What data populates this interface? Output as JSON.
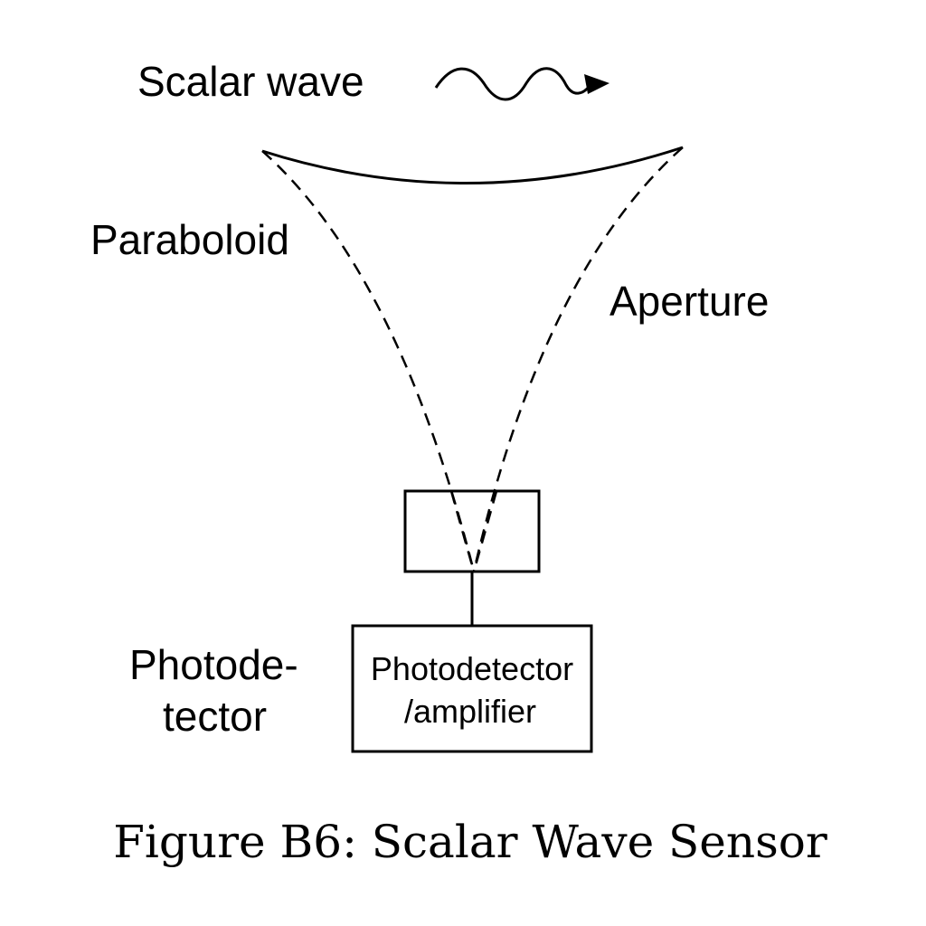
{
  "labels": {
    "scalar_wave": "Scalar wave",
    "paraboloid": "Paraboloid",
    "aperture": "Aperture",
    "photodetector_side": [
      "Photode-",
      "tector"
    ]
  },
  "amplifier_box": {
    "lines": [
      "Photodetector",
      "/amplifier"
    ]
  },
  "caption": "Figure B6: Scalar Wave Sensor",
  "icons": {
    "wave": "sine-wave-arrow-icon"
  }
}
